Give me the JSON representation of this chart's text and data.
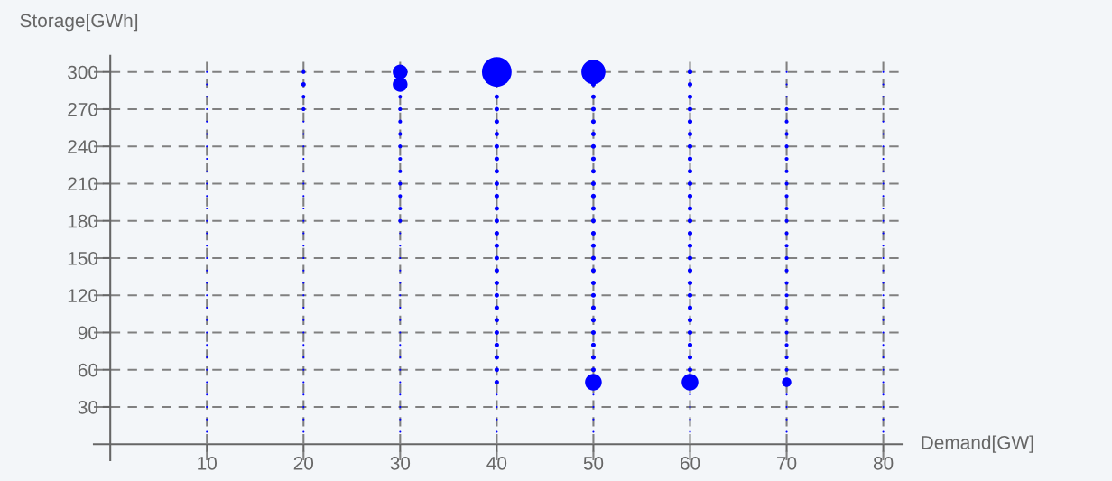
{
  "chart_data": {
    "type": "bubble",
    "xlabel": "Demand[GW]",
    "ylabel": "Storage[GWh]",
    "xlim": [
      -1.7,
      82
    ],
    "ylim": [
      -13,
      313
    ],
    "xticks": [
      10,
      20,
      30,
      40,
      50,
      60,
      70,
      80
    ],
    "yticks": [
      30,
      60,
      90,
      120,
      150,
      180,
      210,
      240,
      270,
      300
    ],
    "grid": true,
    "marker": "circle",
    "series": [
      {
        "color": "#0000ff",
        "x": [
          10,
          10,
          10,
          10,
          10,
          10,
          10,
          10,
          10,
          10,
          10,
          10,
          10,
          10,
          10,
          10,
          10,
          10,
          10,
          10,
          10,
          10,
          10,
          10,
          10,
          10,
          10,
          10,
          10,
          10
        ],
        "values": [
          10,
          20,
          30,
          40,
          50,
          60,
          70,
          80,
          90,
          100,
          110,
          120,
          130,
          140,
          150,
          160,
          170,
          180,
          190,
          200,
          210,
          220,
          230,
          240,
          250,
          260,
          270,
          280,
          290,
          300
        ],
        "sizes": [
          0.004,
          0.004,
          0.004,
          0.004,
          0.004,
          0.004,
          0.004,
          0.004,
          0.004,
          0.004,
          0.004,
          0.004,
          0.004,
          0.004,
          0.004,
          0.004,
          0.004,
          0.004,
          0.004,
          0.004,
          0.004,
          0.004,
          0.004,
          0.004,
          0.004,
          0.004,
          0.004,
          0.004,
          0.004,
          0.004
        ]
      },
      {
        "color": "#0000ff",
        "x": [
          20,
          20,
          20,
          20,
          20,
          20,
          20,
          20,
          20,
          20,
          20,
          20,
          20,
          20,
          20,
          20,
          20,
          20,
          20,
          20,
          20,
          20,
          20,
          20,
          20,
          20,
          20,
          20,
          20,
          20
        ],
        "values": [
          10,
          20,
          30,
          40,
          50,
          60,
          70,
          80,
          90,
          100,
          110,
          120,
          130,
          140,
          150,
          160,
          170,
          180,
          190,
          200,
          210,
          220,
          230,
          240,
          250,
          260,
          270,
          280,
          290,
          300
        ],
        "sizes": [
          0.004,
          0.004,
          0.004,
          0.004,
          0.004,
          0.004,
          0.004,
          0.004,
          0.004,
          0.004,
          0.004,
          0.004,
          0.004,
          0.004,
          0.004,
          0.004,
          0.004,
          0.004,
          0.004,
          0.004,
          0.004,
          0.004,
          0.004,
          0.004,
          0.004,
          0.004,
          0.016,
          0.016,
          0.024,
          0.016
        ]
      },
      {
        "color": "#0000ff",
        "x": [
          30,
          30,
          30,
          30,
          30,
          30,
          30,
          30,
          30,
          30,
          30,
          30,
          30,
          30,
          30,
          30,
          30,
          30,
          30,
          30,
          30,
          30,
          30,
          30,
          30,
          30,
          30,
          30,
          30,
          30
        ],
        "values": [
          10,
          20,
          30,
          40,
          50,
          60,
          70,
          80,
          90,
          100,
          110,
          120,
          130,
          140,
          150,
          160,
          170,
          180,
          190,
          200,
          210,
          220,
          230,
          240,
          250,
          260,
          270,
          280,
          290,
          300
        ],
        "sizes": [
          0.004,
          0.004,
          0.004,
          0.004,
          0.004,
          0.004,
          0.004,
          0.004,
          0.004,
          0.004,
          0.004,
          0.004,
          0.004,
          0.004,
          0.004,
          0.004,
          0.004,
          0.016,
          0.016,
          0.016,
          0.016,
          0.016,
          0.016,
          0.016,
          0.016,
          0.016,
          0.016,
          0.016,
          0.25,
          0.25
        ]
      },
      {
        "color": "#0000ff",
        "x": [
          40,
          40,
          40,
          40,
          40,
          40,
          40,
          40,
          40,
          40,
          40,
          40,
          40,
          40,
          40,
          40,
          40,
          40,
          40,
          40,
          40,
          40,
          40,
          40,
          40,
          40,
          40,
          40,
          40
        ],
        "values": [
          10,
          20,
          30,
          40,
          50,
          60,
          70,
          80,
          90,
          100,
          110,
          120,
          130,
          140,
          150,
          160,
          170,
          180,
          190,
          200,
          210,
          220,
          230,
          240,
          250,
          260,
          270,
          280,
          300
        ],
        "sizes": [
          0.004,
          0.004,
          0.004,
          0.004,
          0.024,
          0.024,
          0.024,
          0.024,
          0.024,
          0.024,
          0.024,
          0.024,
          0.024,
          0.024,
          0.024,
          0.024,
          0.024,
          0.024,
          0.024,
          0.024,
          0.024,
          0.024,
          0.024,
          0.024,
          0.024,
          0.024,
          0.024,
          0.024,
          1
        ]
      },
      {
        "color": "#0000ff",
        "x": [
          50,
          50,
          50,
          50,
          50,
          50,
          50,
          50,
          50,
          50,
          50,
          50,
          50,
          50,
          50,
          50,
          50,
          50,
          50,
          50,
          50,
          50,
          50,
          50,
          50,
          50,
          50,
          50,
          50,
          50
        ],
        "values": [
          10,
          20,
          30,
          40,
          50,
          60,
          70,
          80,
          90,
          100,
          110,
          120,
          130,
          140,
          150,
          160,
          170,
          180,
          190,
          200,
          210,
          220,
          230,
          240,
          250,
          260,
          270,
          280,
          290,
          300
        ],
        "sizes": [
          0.004,
          0.004,
          0.004,
          0.004,
          0.32,
          0.024,
          0.024,
          0.024,
          0.024,
          0.024,
          0.024,
          0.024,
          0.024,
          0.024,
          0.024,
          0.024,
          0.024,
          0.024,
          0.024,
          0.024,
          0.024,
          0.024,
          0.024,
          0.024,
          0.024,
          0.024,
          0.024,
          0.024,
          0.024,
          0.66
        ]
      },
      {
        "color": "#0000ff",
        "x": [
          60,
          60,
          60,
          60,
          60,
          60,
          60,
          60,
          60,
          60,
          60,
          60,
          60,
          60,
          60,
          60,
          60,
          60,
          60,
          60,
          60,
          60,
          60,
          60,
          60,
          60,
          60,
          60,
          60,
          60
        ],
        "values": [
          10,
          20,
          30,
          40,
          50,
          60,
          70,
          80,
          90,
          100,
          110,
          120,
          130,
          140,
          150,
          160,
          170,
          180,
          190,
          200,
          210,
          220,
          230,
          240,
          250,
          260,
          270,
          280,
          290,
          300
        ],
        "sizes": [
          0.004,
          0.004,
          0.004,
          0.004,
          0.32,
          0.024,
          0.024,
          0.024,
          0.024,
          0.024,
          0.024,
          0.024,
          0.024,
          0.024,
          0.024,
          0.024,
          0.024,
          0.024,
          0.024,
          0.024,
          0.024,
          0.024,
          0.024,
          0.024,
          0.024,
          0.024,
          0.024,
          0.024,
          0.024,
          0.024
        ]
      },
      {
        "color": "#0000ff",
        "x": [
          70,
          70,
          70,
          70,
          70,
          70,
          70,
          70,
          70,
          70,
          70,
          70,
          70,
          70,
          70,
          70,
          70,
          70,
          70,
          70,
          70,
          70,
          70,
          70,
          70,
          70,
          70,
          70,
          70,
          70
        ],
        "values": [
          10,
          20,
          30,
          40,
          50,
          60,
          70,
          80,
          90,
          100,
          110,
          120,
          130,
          140,
          150,
          160,
          170,
          180,
          190,
          200,
          210,
          220,
          230,
          240,
          250,
          260,
          270,
          280,
          290,
          300
        ],
        "sizes": [
          0.004,
          0.004,
          0.004,
          0.004,
          0.1,
          0.016,
          0.016,
          0.016,
          0.016,
          0.016,
          0.016,
          0.016,
          0.016,
          0.016,
          0.016,
          0.016,
          0.016,
          0.016,
          0.016,
          0.016,
          0.016,
          0.016,
          0.016,
          0.016,
          0.016,
          0.016,
          0.016,
          0.004,
          0.004,
          0.004
        ]
      },
      {
        "color": "#0000ff",
        "x": [
          80,
          80,
          80,
          80,
          80,
          80,
          80,
          80,
          80,
          80,
          80,
          80,
          80,
          80,
          80,
          80,
          80,
          80,
          80,
          80,
          80,
          80,
          80,
          80,
          80,
          80,
          80,
          80,
          80,
          80
        ],
        "values": [
          10,
          20,
          30,
          40,
          50,
          60,
          70,
          80,
          90,
          100,
          110,
          120,
          130,
          140,
          150,
          160,
          170,
          180,
          190,
          200,
          210,
          220,
          230,
          240,
          250,
          260,
          270,
          280,
          290,
          300
        ],
        "sizes": [
          0.004,
          0.004,
          0.004,
          0.004,
          0.004,
          0.004,
          0.004,
          0.004,
          0.004,
          0.004,
          0.004,
          0.004,
          0.004,
          0.004,
          0.004,
          0.004,
          0.004,
          0.004,
          0.004,
          0.004,
          0.004,
          0.004,
          0.004,
          0.004,
          0.004,
          0.004,
          0.004,
          0.004,
          0.004,
          0.004
        ]
      }
    ]
  }
}
